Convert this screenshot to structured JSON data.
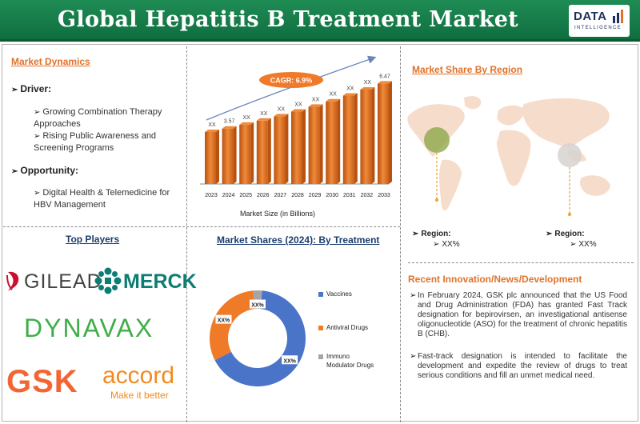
{
  "header": {
    "title": "Global Hepatitis B Treatment Market",
    "logo_text": "DATA",
    "logo_sub": "INTELLIGENCE"
  },
  "dynamics": {
    "title": "Market Dynamics",
    "driver_label": "Driver:",
    "drivers": [
      "Growing Combination Therapy Approaches",
      "Rising Public Awareness and Screening Programs"
    ],
    "opportunity_label": "Opportunity:",
    "opportunities": [
      "Digital Health & Telemedicine for HBV Management"
    ]
  },
  "chart_data": {
    "type": "bar",
    "categories": [
      "2023",
      "2024",
      "2025",
      "2026",
      "2027",
      "2028",
      "2029",
      "2030",
      "2031",
      "2032",
      "2033"
    ],
    "values": [
      3.35,
      3.57,
      3.82,
      4.08,
      4.36,
      4.66,
      4.98,
      5.32,
      5.69,
      6.08,
      6.47
    ],
    "data_labels": [
      "XX",
      "3.57",
      "XX",
      "XX",
      "XX",
      "XX",
      "XX",
      "XX",
      "XX",
      "XX",
      "6.47"
    ],
    "xlabel": "Market Size (in Billions)",
    "cagr_label": "CAGR: 6.9%",
    "colors": {
      "bar": "#e06a1f",
      "bar_light": "#f08a3a",
      "bar_dark": "#b8520f",
      "callout": "#f07a2a",
      "arrow": "#6c86b8"
    }
  },
  "region": {
    "title": "Market Share By Region",
    "left": {
      "label": "Region:",
      "value": "XX%"
    },
    "right": {
      "label": "Region:",
      "value": "XX%"
    },
    "colors": {
      "land": "#f6dccb",
      "marker_left": "#8fa94b",
      "marker_right": "#d7d2cf",
      "line": "#f0a030"
    }
  },
  "players": {
    "title": "Top Players",
    "names": [
      "GILEAD",
      "MERCK",
      "DYNAVAX",
      "GSK",
      "accord"
    ],
    "accord_tagline": "Make it better"
  },
  "treatment": {
    "title": "Market Shares (2024): By Treatment",
    "chart_data": {
      "type": "pie",
      "categories": [
        "Vaccines",
        "Antiviral Drugs",
        "Immuno Modulator Drugs"
      ],
      "values": [
        66,
        31,
        3
      ],
      "data_labels": [
        "XX%",
        "XX%",
        "XX%"
      ],
      "colors": [
        "#4a74c7",
        "#ef7a27",
        "#a5a5a5"
      ]
    }
  },
  "news": {
    "title": "Recent Innovation/News/Development",
    "items": [
      "In February 2024, GSK plc announced that the US Food and Drug Administration (FDA) has granted Fast Track designation for bepirovirsen, an investigational antisense oligonucleotide (ASO) for the treatment of chronic hepatitis B (CHB).",
      "Fast-track designation is intended to facilitate the development and expedite the review of drugs to treat serious conditions and fill an unmet medical need."
    ]
  }
}
